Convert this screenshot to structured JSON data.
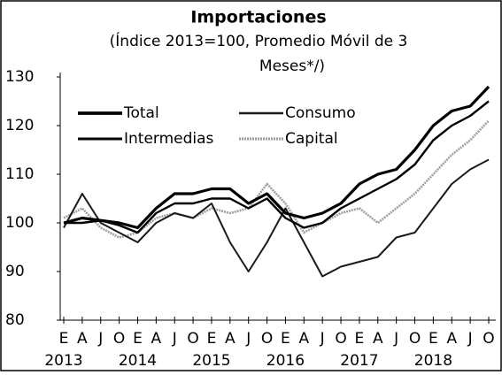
{
  "chart_data": {
    "type": "line",
    "title": "Importaciones",
    "subtitle": [
      "(Índice 2013=100, Promedio Móvil de 3",
      "Meses*/)"
    ],
    "categories": [
      "E",
      "A",
      "J",
      "O",
      "E",
      "A",
      "J",
      "O",
      "E",
      "A",
      "J",
      "O",
      "E",
      "A",
      "J",
      "O",
      "E",
      "A",
      "J",
      "O",
      "E",
      "A",
      "J",
      "O"
    ],
    "year_labels": [
      "2013",
      "2014",
      "2015",
      "2016",
      "2017",
      "2018"
    ],
    "series": [
      {
        "name": "Total",
        "color": "#000000",
        "values": [
          100,
          101,
          100.5,
          100,
          99,
          103,
          106,
          106,
          107,
          107,
          104,
          106,
          102,
          101,
          102,
          104,
          108,
          110,
          111,
          115,
          120,
          123,
          124,
          128
        ]
      },
      {
        "name": "Consumo",
        "color": "#1a1a1a",
        "values": [
          99,
          106,
          100,
          98,
          96,
          100,
          102,
          101,
          104,
          96,
          90,
          96,
          103,
          96,
          89,
          91,
          92,
          93,
          97,
          98,
          103,
          108,
          111,
          113
        ]
      },
      {
        "name": "Intermedias",
        "color": "#000000",
        "values": [
          100,
          100,
          100.5,
          99.5,
          98,
          102,
          104,
          104,
          105,
          105,
          103,
          105,
          101,
          99,
          100,
          103,
          105,
          107,
          109,
          112,
          117,
          120,
          122,
          125
        ]
      },
      {
        "name": "Capital",
        "color": "#a0a0a0",
        "values": [
          101,
          103,
          99,
          97,
          98,
          101,
          102,
          101,
          103,
          102,
          103,
          108,
          104,
          98,
          100,
          102,
          103,
          100,
          103,
          106,
          110,
          114,
          117,
          121
        ]
      }
    ],
    "ylim": [
      80,
      130
    ],
    "yticks": [
      80,
      90,
      100,
      110,
      120,
      130
    ]
  }
}
